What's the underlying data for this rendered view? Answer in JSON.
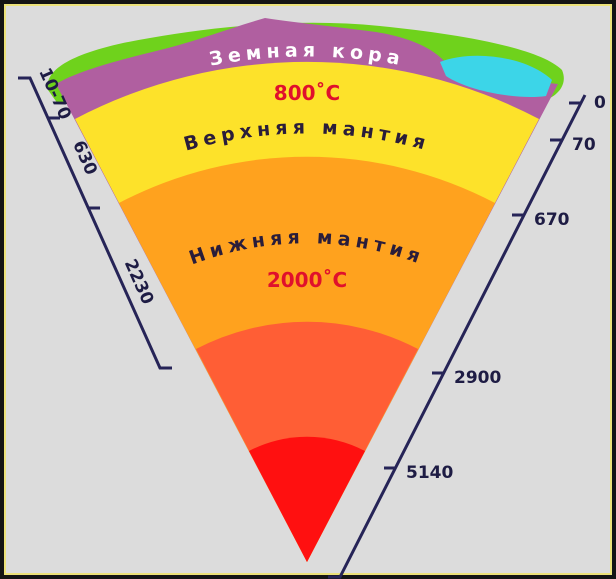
{
  "labels": {
    "crust": "Земная кора",
    "upper_temp": "800˚C",
    "upper_mantle": "Верхняя мантия",
    "lower_mantle": "Нижняя мантия",
    "lower_temp": "2000˚C"
  },
  "left_scale": [
    "10-70",
    "630",
    "2230"
  ],
  "right_scale": [
    "0",
    "70",
    "670",
    "2900",
    "5140"
  ]
}
